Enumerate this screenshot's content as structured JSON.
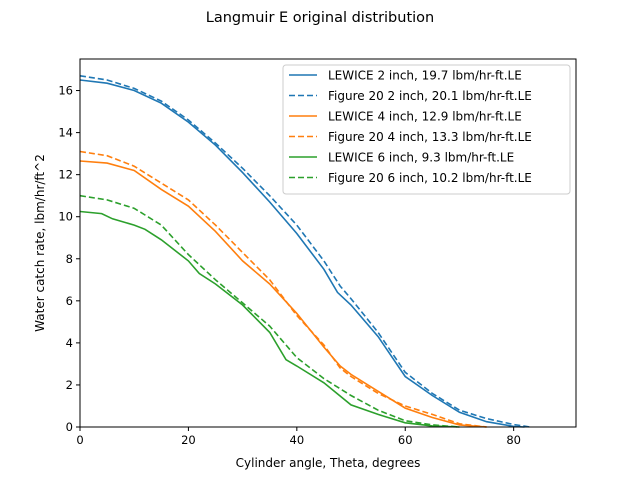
{
  "chart_data": {
    "type": "line",
    "title": "Langmuir E original distribution",
    "xlabel": "Cylinder angle, Theta, degrees",
    "ylabel": "Water catch rate, lbm/hr/ft^2",
    "xlim": [
      0,
      91.5
    ],
    "ylim": [
      0,
      17.5
    ],
    "xticks": [
      0,
      20,
      40,
      60,
      80
    ],
    "yticks": [
      0,
      2,
      4,
      6,
      8,
      10,
      12,
      14,
      16
    ],
    "grid": false,
    "legend_position": "top-right",
    "series": [
      {
        "name": "LEWICE 2 inch, 19.7 lbm/hr-ft.LE",
        "color": "#1f77b4",
        "style": "solid",
        "x": [
          0,
          5,
          10,
          15,
          20,
          25,
          30,
          35,
          40,
          45,
          47.5,
          50,
          55,
          60,
          65,
          70,
          75,
          80,
          82
        ],
        "y": [
          16.5,
          16.35,
          16.0,
          15.4,
          14.5,
          13.4,
          12.1,
          10.7,
          9.2,
          7.5,
          6.4,
          5.8,
          4.3,
          2.4,
          1.5,
          0.7,
          0.25,
          0.03,
          0
        ]
      },
      {
        "name": "Figure 20 2 inch, 20.1 lbm/hr-ft.LE",
        "color": "#1f77b4",
        "style": "dashed",
        "x": [
          0,
          5,
          10,
          15,
          20,
          25,
          30,
          35,
          40,
          45,
          48,
          50,
          55,
          60,
          65,
          70,
          75,
          80,
          83
        ],
        "y": [
          16.7,
          16.5,
          16.1,
          15.5,
          14.6,
          13.5,
          12.3,
          11.0,
          9.6,
          7.9,
          6.7,
          6.1,
          4.5,
          2.6,
          1.6,
          0.8,
          0.4,
          0.12,
          0
        ]
      },
      {
        "name": "LEWICE 4 inch, 12.9 lbm/hr-ft.LE",
        "color": "#ff7f0e",
        "style": "solid",
        "x": [
          0,
          5,
          10,
          15,
          20,
          25,
          30,
          35,
          40,
          45,
          48,
          50,
          55,
          60,
          65,
          70,
          75
        ],
        "y": [
          12.65,
          12.55,
          12.2,
          11.3,
          10.5,
          9.3,
          7.9,
          6.8,
          5.4,
          3.8,
          2.9,
          2.5,
          1.7,
          0.9,
          0.45,
          0.1,
          0
        ]
      },
      {
        "name": "Figure 20 4 inch, 13.3 lbm/hr-ft.LE",
        "color": "#ff7f0e",
        "style": "dashed",
        "x": [
          0,
          5,
          10,
          15,
          20,
          25,
          30,
          35,
          40,
          45,
          48,
          50,
          55,
          60,
          65,
          70,
          75
        ],
        "y": [
          13.1,
          12.9,
          12.4,
          11.6,
          10.8,
          9.6,
          8.3,
          7.0,
          5.3,
          3.9,
          2.8,
          2.4,
          1.6,
          1.0,
          0.6,
          0.15,
          0
        ]
      },
      {
        "name": "LEWICE 6 inch, 9.3 lbm/hr-ft.LE",
        "color": "#2ca02c",
        "style": "solid",
        "x": [
          0,
          4,
          6,
          10,
          12,
          15,
          20,
          22,
          25,
          30,
          35,
          38,
          40,
          45,
          50,
          55,
          60,
          65,
          70
        ],
        "y": [
          10.25,
          10.15,
          9.9,
          9.6,
          9.4,
          8.9,
          7.9,
          7.3,
          6.8,
          5.8,
          4.5,
          3.2,
          2.9,
          2.1,
          1.05,
          0.6,
          0.2,
          0.05,
          0
        ]
      },
      {
        "name": "Figure 20 6 inch, 10.2 lbm/hr-ft.LE",
        "color": "#2ca02c",
        "style": "dashed",
        "x": [
          0,
          5,
          10,
          15,
          20,
          25,
          30,
          35,
          40,
          45,
          50,
          55,
          60,
          65,
          70
        ],
        "y": [
          11.0,
          10.8,
          10.4,
          9.6,
          8.2,
          7.0,
          5.9,
          4.8,
          3.3,
          2.3,
          1.5,
          0.8,
          0.3,
          0.1,
          0
        ]
      }
    ]
  }
}
